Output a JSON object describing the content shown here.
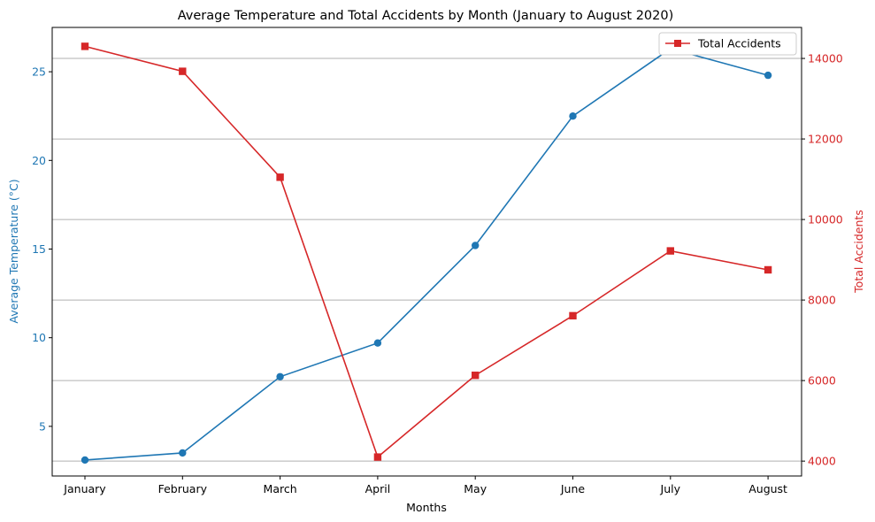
{
  "chart_data": {
    "type": "line",
    "title": "Average Temperature and Total Accidents by Month (January to August 2020)",
    "xlabel": "Months",
    "categories": [
      "January",
      "February",
      "March",
      "April",
      "May",
      "June",
      "July",
      "August"
    ],
    "left_axis": {
      "label": "Average Temperature (°C)",
      "color": "#1f77b4",
      "range": [
        2.2,
        27.5
      ],
      "ticks": [
        5,
        10,
        15,
        20,
        25
      ]
    },
    "right_axis": {
      "label": "Total Accidents",
      "color": "#d62728",
      "range": [
        3630,
        14770
      ],
      "ticks": [
        4000,
        6000,
        8000,
        10000,
        12000,
        14000
      ]
    },
    "series": [
      {
        "name": "",
        "axis": "left",
        "color": "#1f77b4",
        "marker": "circle",
        "values": [
          3.1,
          3.5,
          7.8,
          9.7,
          15.2,
          22.5,
          26.3,
          24.8
        ]
      },
      {
        "name": "Total Accidents",
        "axis": "right",
        "color": "#d62728",
        "marker": "square",
        "values": [
          14300,
          13680,
          11050,
          4100,
          6130,
          7610,
          9220,
          8750
        ]
      }
    ],
    "grid": "horizontal lines at right-axis ticks",
    "legend": "top-right"
  }
}
